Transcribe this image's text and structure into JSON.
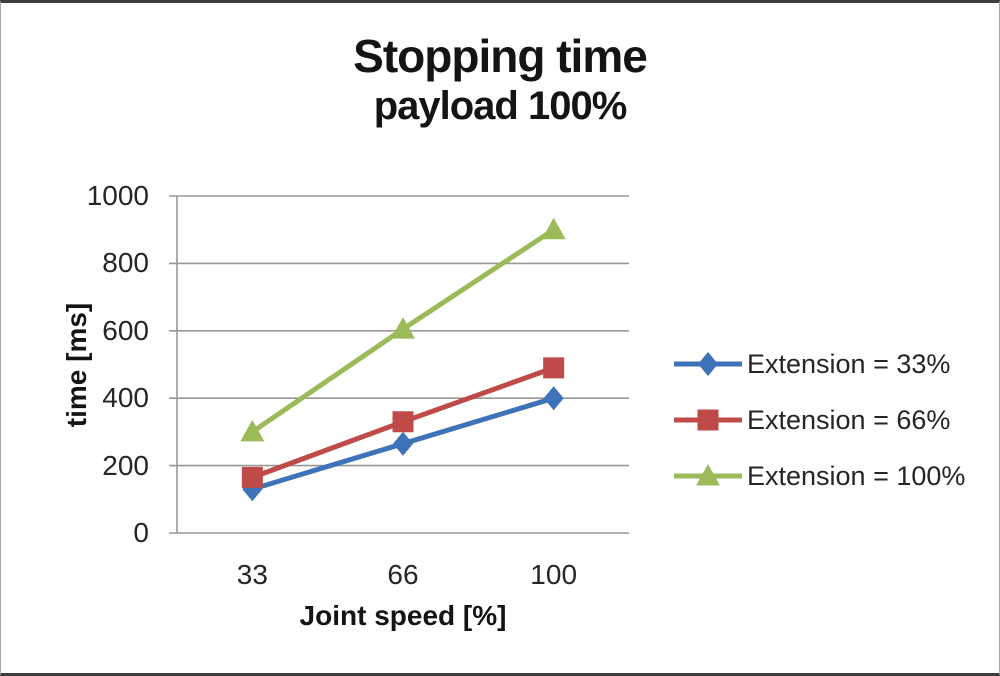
{
  "chart_data": {
    "type": "line",
    "title": "Stopping time",
    "subtitle": "payload 100%",
    "xlabel": "Joint speed [%]",
    "ylabel": "time [ms]",
    "categories": [
      "33",
      "66",
      "100"
    ],
    "series": [
      {
        "name": "Extension = 33%",
        "values": [
          130,
          265,
          400
        ],
        "color": "#3E73B9",
        "marker": "diamond"
      },
      {
        "name": "Extension = 66%",
        "values": [
          165,
          330,
          490
        ],
        "color": "#BE4B48",
        "marker": "square"
      },
      {
        "name": "Extension = 100%",
        "values": [
          300,
          605,
          900
        ],
        "color": "#9BBB59",
        "marker": "triangle"
      }
    ],
    "ylim": [
      0,
      1000
    ],
    "yticks": [
      0,
      200,
      400,
      600,
      800,
      1000
    ],
    "grid": true,
    "gridline_color": "#979797",
    "legend_position": "right"
  }
}
